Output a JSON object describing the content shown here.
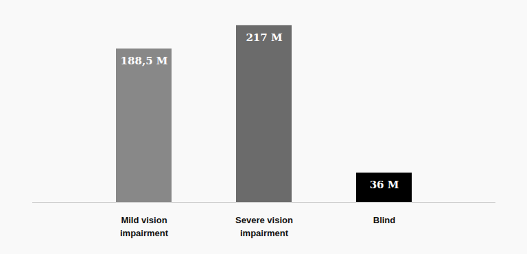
{
  "chart_data": {
    "type": "bar",
    "categories": [
      "Mild vision impairment",
      "Severe vision impairment",
      "Blind"
    ],
    "values": [
      188.5,
      217,
      36
    ],
    "value_labels": [
      "188,5 M",
      "217 M",
      "36 M"
    ],
    "colors": [
      "#888888",
      "#6b6b6b",
      "#000000"
    ],
    "ylim": [
      0,
      248
    ],
    "data_labels": true,
    "tick_labels": "x",
    "grid": false
  }
}
